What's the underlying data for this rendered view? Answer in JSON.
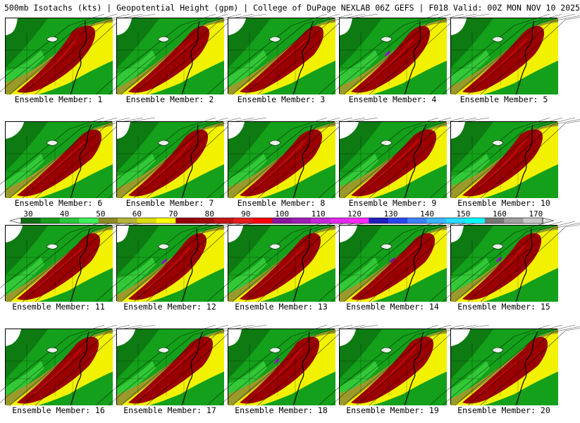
{
  "header": "500mb Isotachs (kts) | Geopotential Height (gpm) | College of DuPage NEXLAB   06Z GEFS | F018 Valid: 00Z MON NOV 10 2025",
  "members": [
    {
      "label": "Ensemble Member: 1"
    },
    {
      "label": "Ensemble Member: 2"
    },
    {
      "label": "Ensemble Member: 3"
    },
    {
      "label": "Ensemble Member: 4"
    },
    {
      "label": "Ensemble Member: 5"
    },
    {
      "label": "Ensemble Member: 6"
    },
    {
      "label": "Ensemble Member: 7"
    },
    {
      "label": "Ensemble Member: 8"
    },
    {
      "label": "Ensemble Member: 9"
    },
    {
      "label": "Ensemble Member: 10"
    },
    {
      "label": "Ensemble Member: 11"
    },
    {
      "label": "Ensemble Member: 12"
    },
    {
      "label": "Ensemble Member: 13"
    },
    {
      "label": "Ensemble Member: 14"
    },
    {
      "label": "Ensemble Member: 15"
    },
    {
      "label": "Ensemble Member: 16"
    },
    {
      "label": "Ensemble Member: 17"
    },
    {
      "label": "Ensemble Member: 18"
    },
    {
      "label": "Ensemble Member: 19"
    },
    {
      "label": "Ensemble Member: 20"
    }
  ],
  "colorbar": {
    "ticks": [
      "30",
      "40",
      "50",
      "60",
      "70",
      "80",
      "90",
      "100",
      "110",
      "120",
      "130",
      "140",
      "150",
      "160",
      "170"
    ],
    "colors": [
      "#0e6e12",
      "#16a01c",
      "#28c83a",
      "#3cf05a",
      "#8c8c28",
      "#b4b43c",
      "#dcdc0a",
      "#ffff00",
      "#960000",
      "#a00a0a",
      "#c81414",
      "#e61e1e",
      "#ff0000",
      "#8c14a0",
      "#a01eb4",
      "#c828dc",
      "#e628f0",
      "#ff28ff",
      "#1e1ebe",
      "#2846f0",
      "#3c82ff",
      "#3cb4ff",
      "#28dcff",
      "#00ffff",
      "#787878",
      "#a0a0a0",
      "#c8c8c8"
    ]
  },
  "map_colors": {
    "green_dark": "#0d7a12",
    "green": "#14a01a",
    "green_light": "#3ad23f",
    "olive": "#9a9a2a",
    "yellow": "#f2f200",
    "red_dark": "#9b0000",
    "red": "#c81010",
    "purple": "#8c1eb4",
    "white": "#ffffff"
  }
}
